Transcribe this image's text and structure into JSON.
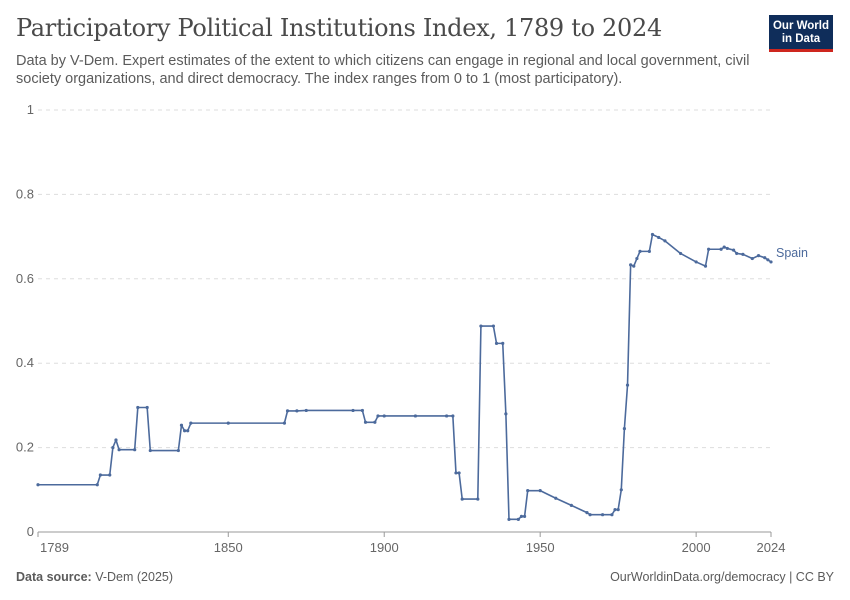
{
  "header": {
    "title": "Participatory Political Institutions Index, 1789 to 2024",
    "subtitle": "Data by V-Dem. Expert estimates of the extent to which citizens can engage in regional and local government, civil society organizations, and direct democracy. The index ranges from 0 to 1 (most participatory).",
    "logo_line1": "Our World",
    "logo_line2": "in Data"
  },
  "footer": {
    "source_label": "Data source:",
    "source_value": "V-Dem (2025)",
    "link": "OurWorldinData.org/democracy | CC BY"
  },
  "colors": {
    "series": "#4c6a9c",
    "grid": "#dddddd",
    "axis": "#666666",
    "logo_bg": "#0f2d5a",
    "logo_accent": "#ce261e"
  },
  "chart_data": {
    "type": "line",
    "xlim": [
      1789,
      2024
    ],
    "ylim": [
      0,
      1
    ],
    "x_ticks": [
      1789,
      1850,
      1900,
      1950,
      2000,
      2024
    ],
    "y_ticks": [
      0,
      0.2,
      0.4,
      0.6,
      0.8,
      1
    ],
    "y_tick_labels": [
      "0",
      "0.2",
      "0.4",
      "0.6",
      "0.8",
      "1"
    ],
    "grid": "horizontal dashed",
    "series": [
      {
        "name": "Spain",
        "x": [
          1789,
          1808,
          1809,
          1812,
          1813,
          1814,
          1815,
          1820,
          1821,
          1824,
          1825,
          1834,
          1835,
          1836,
          1837,
          1838,
          1850,
          1868,
          1869,
          1872,
          1875,
          1890,
          1893,
          1894,
          1897,
          1898,
          1900,
          1910,
          1920,
          1922,
          1923,
          1924,
          1925,
          1930,
          1931,
          1935,
          1936,
          1938,
          1939,
          1940,
          1943,
          1944,
          1945,
          1946,
          1950,
          1955,
          1960,
          1965,
          1966,
          1970,
          1973,
          1974,
          1975,
          1976,
          1977,
          1978,
          1979,
          1980,
          1981,
          1982,
          1985,
          1986,
          1988,
          1990,
          1995,
          2000,
          2003,
          2004,
          2008,
          2009,
          2010,
          2012,
          2013,
          2015,
          2018,
          2020,
          2022,
          2023,
          2024
        ],
        "y": [
          0.112,
          0.112,
          0.135,
          0.135,
          0.2,
          0.218,
          0.195,
          0.195,
          0.295,
          0.295,
          0.193,
          0.193,
          0.253,
          0.24,
          0.24,
          0.258,
          0.258,
          0.258,
          0.287,
          0.287,
          0.288,
          0.288,
          0.288,
          0.26,
          0.26,
          0.275,
          0.275,
          0.275,
          0.275,
          0.275,
          0.14,
          0.14,
          0.078,
          0.078,
          0.488,
          0.488,
          0.447,
          0.447,
          0.28,
          0.03,
          0.03,
          0.037,
          0.037,
          0.098,
          0.098,
          0.08,
          0.063,
          0.046,
          0.041,
          0.041,
          0.041,
          0.053,
          0.053,
          0.1,
          0.245,
          0.348,
          0.633,
          0.63,
          0.648,
          0.665,
          0.665,
          0.705,
          0.698,
          0.69,
          0.66,
          0.64,
          0.63,
          0.67,
          0.67,
          0.675,
          0.672,
          0.668,
          0.66,
          0.658,
          0.648,
          0.655,
          0.65,
          0.645,
          0.64
        ]
      }
    ]
  }
}
